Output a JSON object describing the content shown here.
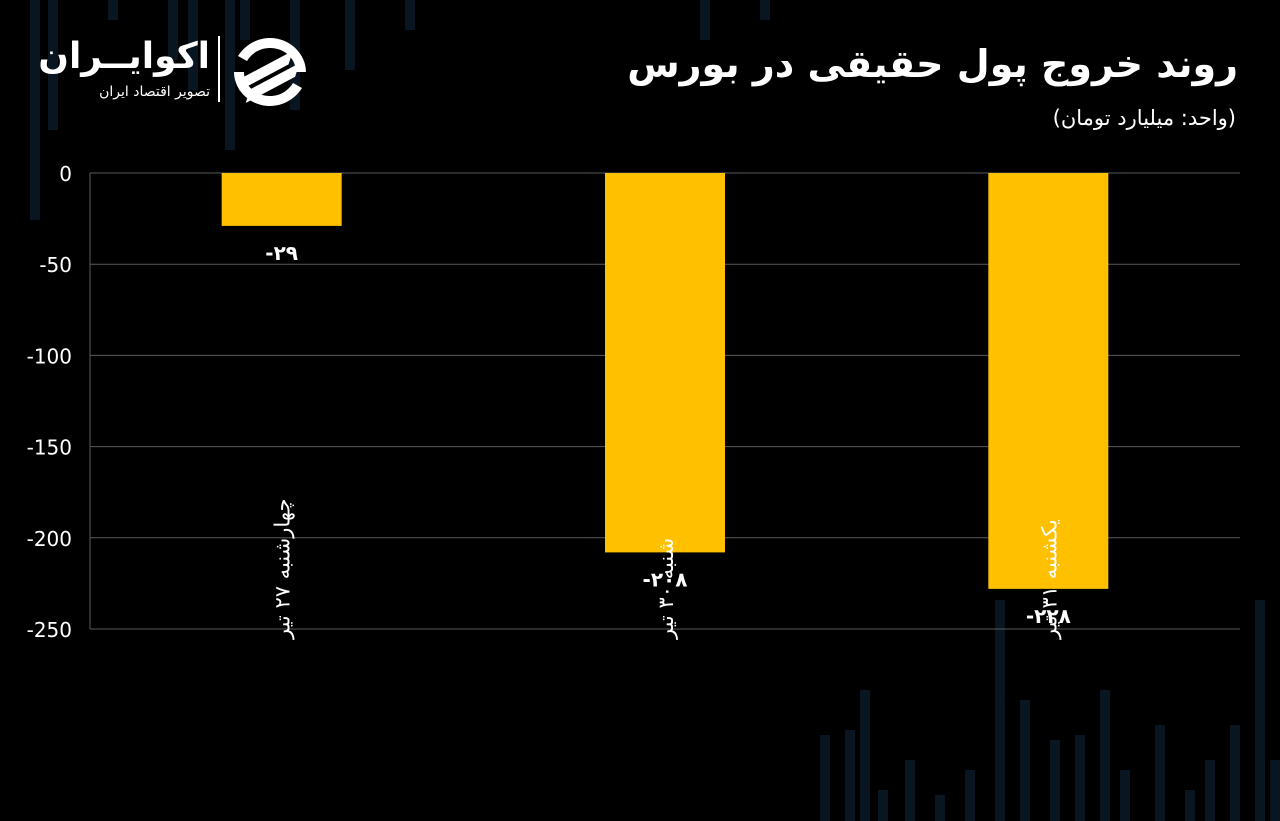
{
  "header": {
    "title": "روند خروج پول حقیقی در بورس",
    "subtitle": "(واحد: میلیارد تومان)"
  },
  "logo": {
    "name": "اکوایــران",
    "tagline": "تصویر اقتصاد ایران"
  },
  "colors": {
    "background": "#000000",
    "bar": "#FFC000",
    "grid": "#5a5a5a",
    "text": "#ffffff"
  },
  "chart_data": {
    "type": "bar",
    "categories": [
      "چهارشنبه ۲۷ تیر",
      "شنبه ۳۰ تیر",
      "یکشنبه ۳۱ تیر"
    ],
    "series": [
      {
        "values": [
          -29,
          -208,
          -228
        ]
      }
    ],
    "value_labels": [
      "-۲۹",
      "-۲۰۸",
      "-۲۲۸"
    ],
    "y_ticks": [
      0,
      -50,
      -100,
      -150,
      -200,
      -250
    ],
    "y_tick_labels": [
      "0",
      "-50",
      "-100",
      "-150",
      "-200",
      "-250"
    ],
    "ylim": [
      -250,
      0
    ],
    "grid": true,
    "legend": "none"
  }
}
